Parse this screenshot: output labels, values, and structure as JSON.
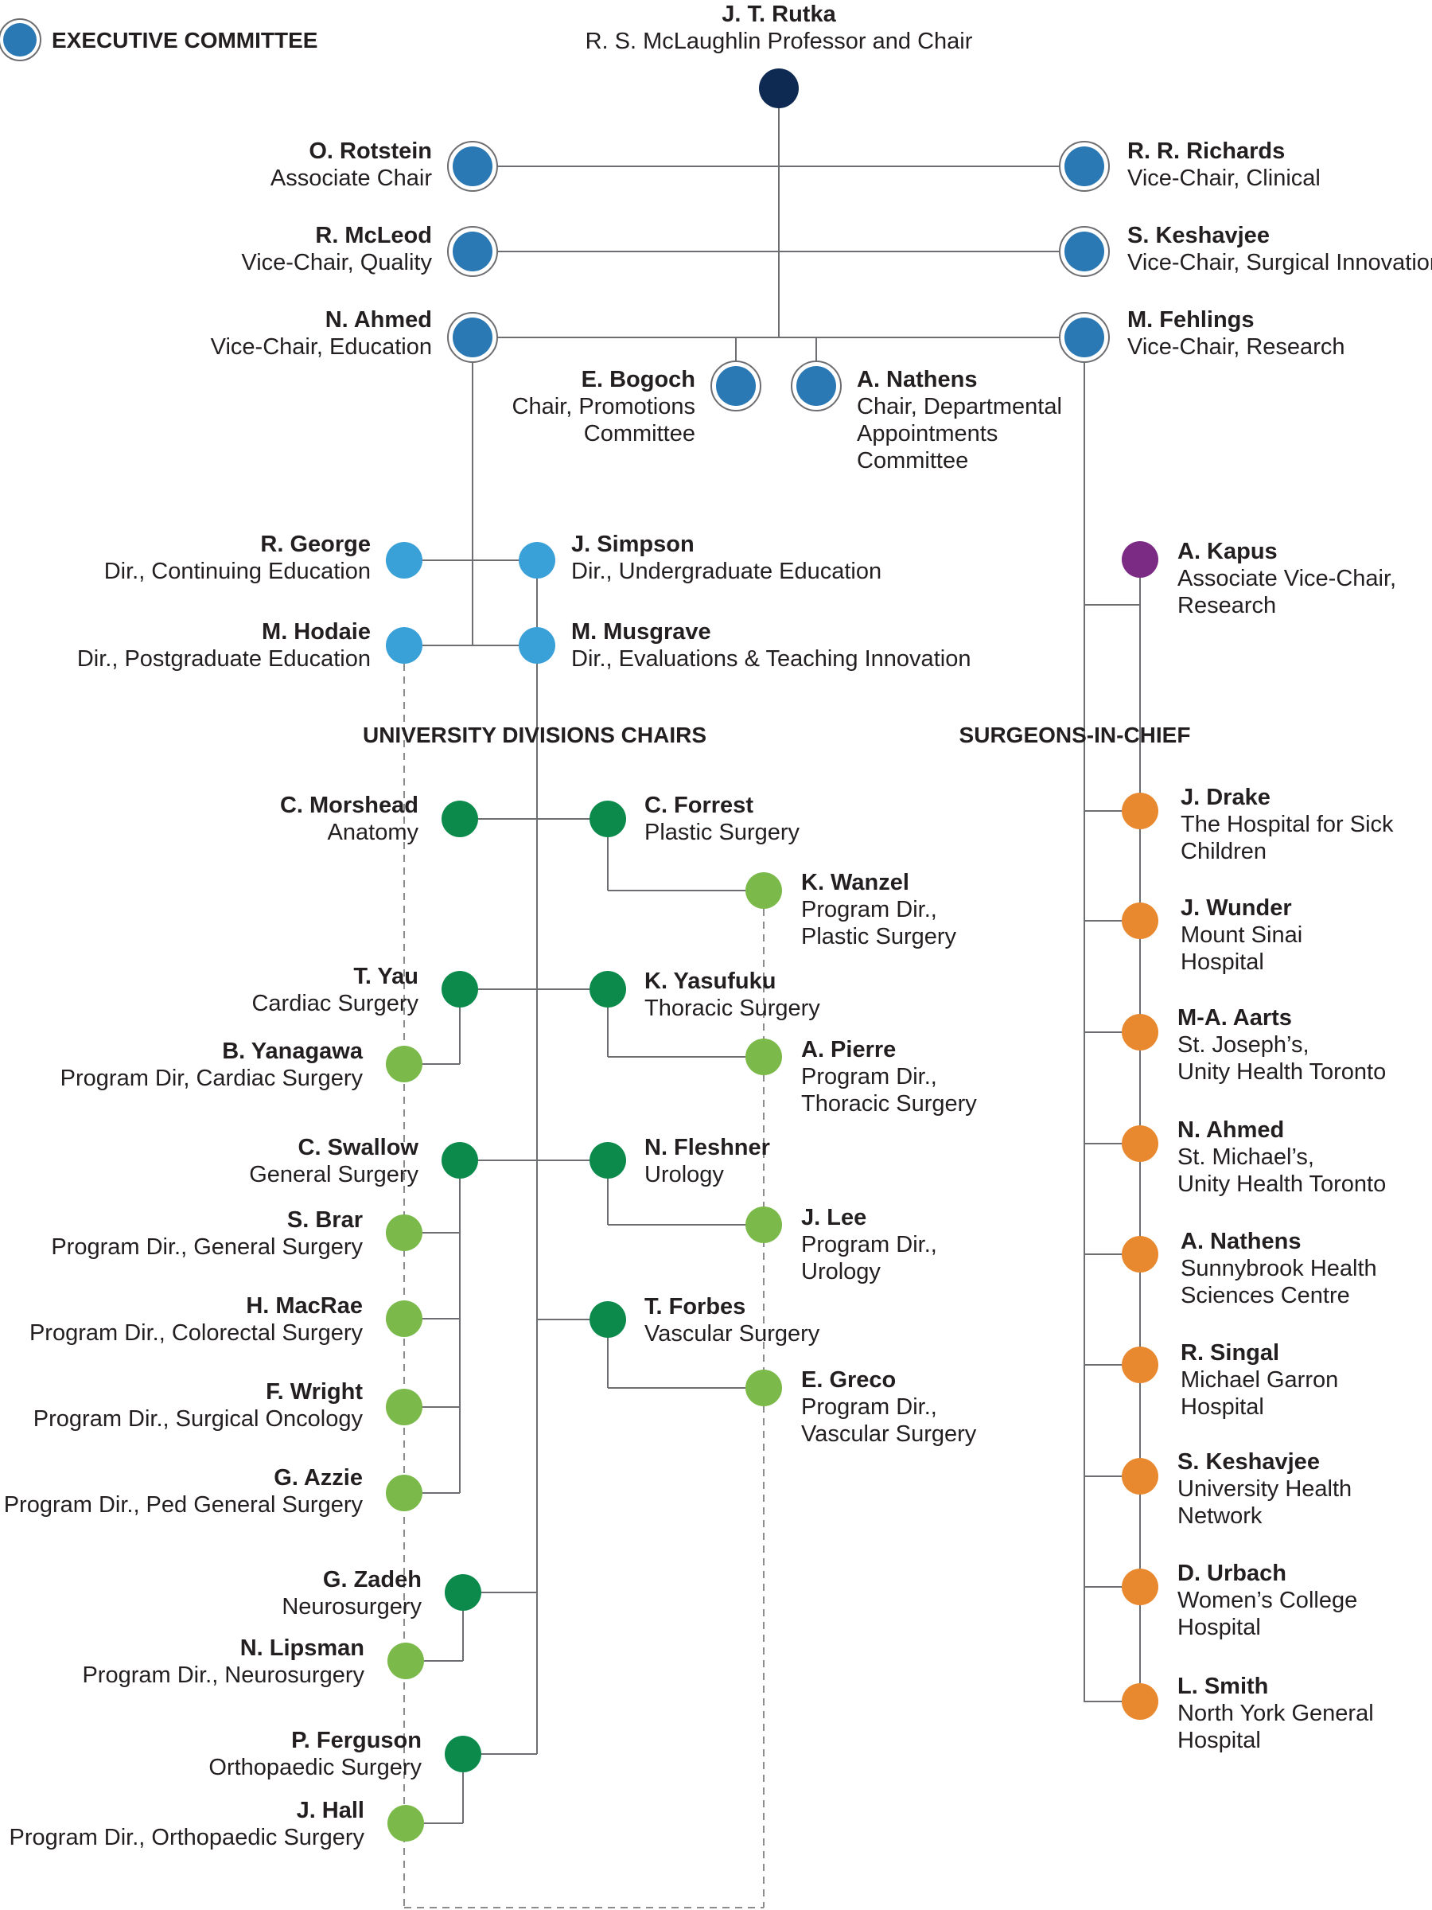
{
  "legend": {
    "label": "EXECUTIVE COMMITTEE"
  },
  "headings": {
    "divisions": "UNIVERSITY DIVISIONS CHAIRS",
    "surgeons": "SURGEONS-IN-CHIEF"
  },
  "colors": {
    "chair": "#0e2a52",
    "executive": "#2a78b4",
    "education": "#3aa0d8",
    "research": "#7b2b84",
    "division_chair": "#0b8a4c",
    "program_director": "#7bba4a",
    "surgeon_in_chief": "#e8892f"
  },
  "nodes": [
    {
      "id": "rutka",
      "name": "J. T. Rutka",
      "title": "R. S. McLaughlin Professor and Chair",
      "kind": "chair"
    },
    {
      "id": "rotstein",
      "name": "O. Rotstein",
      "title": "Associate Chair",
      "kind": "executive"
    },
    {
      "id": "richards",
      "name": "R. R. Richards",
      "title": "Vice-Chair, Clinical",
      "kind": "executive"
    },
    {
      "id": "mcleod",
      "name": "R. McLeod",
      "title": "Vice-Chair, Quality",
      "kind": "executive"
    },
    {
      "id": "keshavjee_vc",
      "name": "S. Keshavjee",
      "title": "Vice-Chair, Surgical Innovation",
      "kind": "executive"
    },
    {
      "id": "ahmed_vc",
      "name": "N. Ahmed",
      "title": "Vice-Chair, Education",
      "kind": "executive"
    },
    {
      "id": "fehlings",
      "name": "M. Fehlings",
      "title": "Vice-Chair, Research",
      "kind": "executive"
    },
    {
      "id": "bogoch",
      "name": "E. Bogoch",
      "title": "Chair, Promotions Committee",
      "kind": "executive"
    },
    {
      "id": "nathens_c",
      "name": "A. Nathens",
      "title": "Chair, Departmental Appointments Committee",
      "kind": "executive"
    },
    {
      "id": "george",
      "name": "R. George",
      "title": "Dir., Continuing Education",
      "kind": "education"
    },
    {
      "id": "simpson",
      "name": "J. Simpson",
      "title": "Dir., Undergraduate Education",
      "kind": "education"
    },
    {
      "id": "hodaie",
      "name": "M. Hodaie",
      "title": "Dir., Postgraduate Education",
      "kind": "education"
    },
    {
      "id": "musgrave",
      "name": "M. Musgrave",
      "title": "Dir., Evaluations & Teaching Innovation",
      "kind": "education"
    },
    {
      "id": "kapus",
      "name": "A. Kapus",
      "title": "Associate Vice-Chair, Research",
      "kind": "research"
    },
    {
      "id": "morshead",
      "name": "C. Morshead",
      "title": "Anatomy",
      "kind": "division_chair"
    },
    {
      "id": "forrest",
      "name": "C. Forrest",
      "title": "Plastic Surgery",
      "kind": "division_chair"
    },
    {
      "id": "wanzel",
      "name": "K. Wanzel",
      "title": "Program Dir., Plastic Surgery",
      "kind": "program_director"
    },
    {
      "id": "yau",
      "name": "T. Yau",
      "title": "Cardiac Surgery",
      "kind": "division_chair"
    },
    {
      "id": "yasufuku",
      "name": "K. Yasufuku",
      "title": "Thoracic Surgery",
      "kind": "division_chair"
    },
    {
      "id": "yanagawa",
      "name": "B. Yanagawa",
      "title": "Program Dir, Cardiac Surgery",
      "kind": "program_director"
    },
    {
      "id": "pierre",
      "name": "A. Pierre",
      "title": "Program Dir., Thoracic Surgery",
      "kind": "program_director"
    },
    {
      "id": "swallow",
      "name": "C. Swallow",
      "title": "General Surgery",
      "kind": "division_chair"
    },
    {
      "id": "fleshner",
      "name": "N. Fleshner",
      "title": "Urology",
      "kind": "division_chair"
    },
    {
      "id": "brar",
      "name": "S. Brar",
      "title": "Program Dir., General Surgery",
      "kind": "program_director"
    },
    {
      "id": "lee",
      "name": "J. Lee",
      "title": "Program Dir., Urology",
      "kind": "program_director"
    },
    {
      "id": "macrae",
      "name": "H. MacRae",
      "title": "Program Dir., Colorectal Surgery",
      "kind": "program_director"
    },
    {
      "id": "forbes",
      "name": "T. Forbes",
      "title": "Vascular Surgery",
      "kind": "division_chair"
    },
    {
      "id": "wright",
      "name": "F. Wright",
      "title": "Program Dir., Surgical Oncology",
      "kind": "program_director"
    },
    {
      "id": "greco",
      "name": "E. Greco",
      "title": "Program Dir., Vascular Surgery",
      "kind": "program_director"
    },
    {
      "id": "azzie",
      "name": "G. Azzie",
      "title": "Program Dir., Ped General Surgery",
      "kind": "program_director"
    },
    {
      "id": "zadeh",
      "name": "G. Zadeh",
      "title": "Neurosurgery",
      "kind": "division_chair"
    },
    {
      "id": "lipsman",
      "name": "N. Lipsman",
      "title": "Program Dir., Neurosurgery",
      "kind": "program_director"
    },
    {
      "id": "ferguson",
      "name": "P. Ferguson",
      "title": "Orthopaedic Surgery",
      "kind": "division_chair"
    },
    {
      "id": "hall",
      "name": "J. Hall",
      "title": "Program Dir., Orthopaedic Surgery",
      "kind": "program_director"
    },
    {
      "id": "drake",
      "name": "J. Drake",
      "title": "The Hospital for Sick Children",
      "kind": "surgeon_in_chief"
    },
    {
      "id": "wunder",
      "name": "J. Wunder",
      "title": "Mount Sinai Hospital",
      "kind": "surgeon_in_chief"
    },
    {
      "id": "aarts",
      "name": "M-A. Aarts",
      "title": "St. Joseph's, Unity Health Toronto",
      "kind": "surgeon_in_chief"
    },
    {
      "id": "ahmed_sic",
      "name": "N. Ahmed",
      "title": "St. Michael's, Unity Health Toronto",
      "kind": "surgeon_in_chief"
    },
    {
      "id": "nathens_sic",
      "name": "A. Nathens",
      "title": "Sunnybrook Health Sciences Centre",
      "kind": "surgeon_in_chief"
    },
    {
      "id": "singal",
      "name": "R. Singal",
      "title": "Michael Garron Hospital",
      "kind": "surgeon_in_chief"
    },
    {
      "id": "keshavjee_sic",
      "name": "S. Keshavjee",
      "title": "University Health Network",
      "kind": "surgeon_in_chief"
    },
    {
      "id": "urbach",
      "name": "D. Urbach",
      "title": "Women's College Hospital",
      "kind": "surgeon_in_chief"
    },
    {
      "id": "smith",
      "name": "L. Smith",
      "title": "North York General Hospital",
      "kind": "surgeon_in_chief"
    }
  ]
}
